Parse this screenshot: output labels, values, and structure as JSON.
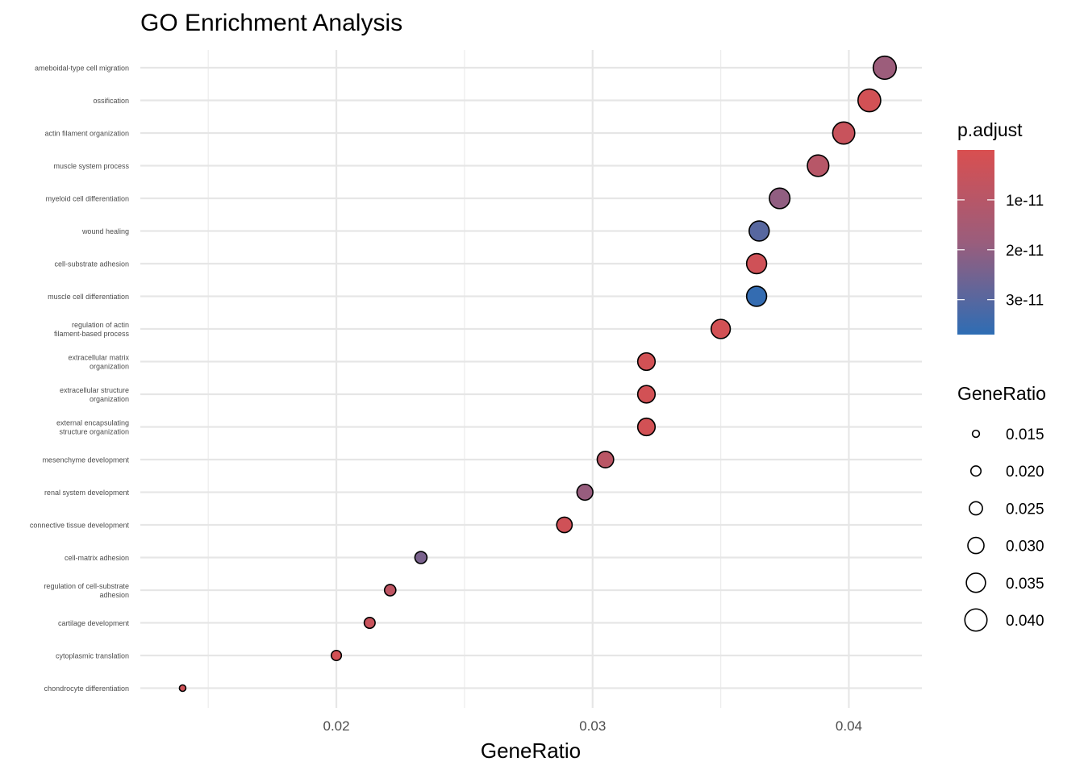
{
  "chart_data": {
    "type": "scatter",
    "title": "GO Enrichment Analysis",
    "xlabel": "GeneRatio",
    "ylabel": "",
    "xlim": [
      0.01235,
      0.04285
    ],
    "x_ticks": [
      {
        "value": 0.02,
        "label": "0.02"
      },
      {
        "value": 0.03,
        "label": "0.03"
      },
      {
        "value": 0.04,
        "label": "0.04"
      }
    ],
    "x_minor": [
      0.015,
      0.025,
      0.035
    ],
    "grid": true,
    "categories": [
      [
        "ameboidal-type cell migration"
      ],
      [
        "ossification"
      ],
      [
        "actin filament organization"
      ],
      [
        "muscle system process"
      ],
      [
        "myeloid cell differentiation"
      ],
      [
        "wound healing"
      ],
      [
        "cell-substrate adhesion"
      ],
      [
        "muscle cell differentiation"
      ],
      [
        "regulation of actin",
        "filament-based process"
      ],
      [
        "extracellular matrix",
        "organization"
      ],
      [
        "extracellular structure",
        "organization"
      ],
      [
        "external encapsulating",
        "structure organization"
      ],
      [
        "mesenchyme development"
      ],
      [
        "renal system development"
      ],
      [
        "connective tissue development"
      ],
      [
        "cell-matrix adhesion"
      ],
      [
        "regulation of cell-substrate",
        "adhesion"
      ],
      [
        "cartilage development"
      ],
      [
        "cytoplasmic translation"
      ],
      [
        "chondrocyte differentiation"
      ]
    ],
    "points": [
      {
        "x": 0.0414,
        "p_adjust": 1.8e-11
      },
      {
        "x": 0.0408,
        "p_adjust": 2e-12
      },
      {
        "x": 0.0398,
        "p_adjust": 5e-12
      },
      {
        "x": 0.0388,
        "p_adjust": 1e-11
      },
      {
        "x": 0.0373,
        "p_adjust": 2e-11
      },
      {
        "x": 0.0365,
        "p_adjust": 3e-11
      },
      {
        "x": 0.0364,
        "p_adjust": 3e-12
      },
      {
        "x": 0.0364,
        "p_adjust": 3.6e-11
      },
      {
        "x": 0.035,
        "p_adjust": 2e-12
      },
      {
        "x": 0.0321,
        "p_adjust": 2e-12
      },
      {
        "x": 0.0321,
        "p_adjust": 2e-12
      },
      {
        "x": 0.0321,
        "p_adjust": 2e-12
      },
      {
        "x": 0.0305,
        "p_adjust": 9e-12
      },
      {
        "x": 0.0297,
        "p_adjust": 1.9e-11
      },
      {
        "x": 0.0289,
        "p_adjust": 3e-12
      },
      {
        "x": 0.0233,
        "p_adjust": 2.4e-11
      },
      {
        "x": 0.0221,
        "p_adjust": 8e-12
      },
      {
        "x": 0.0213,
        "p_adjust": 5e-12
      },
      {
        "x": 0.02,
        "p_adjust": 2e-12
      },
      {
        "x": 0.014,
        "p_adjust": 3e-12
      }
    ],
    "color_scale": {
      "title": "p.adjust",
      "low_color": "#D94F50",
      "mid_color": "#9A5D7C",
      "high_color": "#2E6DB4",
      "domain": [
        0,
        3.7e-11
      ],
      "ticks": [
        {
          "value": 1e-11,
          "label": "1e-11"
        },
        {
          "value": 2e-11,
          "label": "2e-11"
        },
        {
          "value": 3e-11,
          "label": "3e-11"
        }
      ]
    },
    "size_legend": {
      "title": "GeneRatio",
      "entries": [
        {
          "value": 0.015,
          "label": "0.015"
        },
        {
          "value": 0.02,
          "label": "0.020"
        },
        {
          "value": 0.025,
          "label": "0.025"
        },
        {
          "value": 0.03,
          "label": "0.030"
        },
        {
          "value": 0.035,
          "label": "0.035"
        },
        {
          "value": 0.04,
          "label": "0.040"
        }
      ]
    }
  }
}
